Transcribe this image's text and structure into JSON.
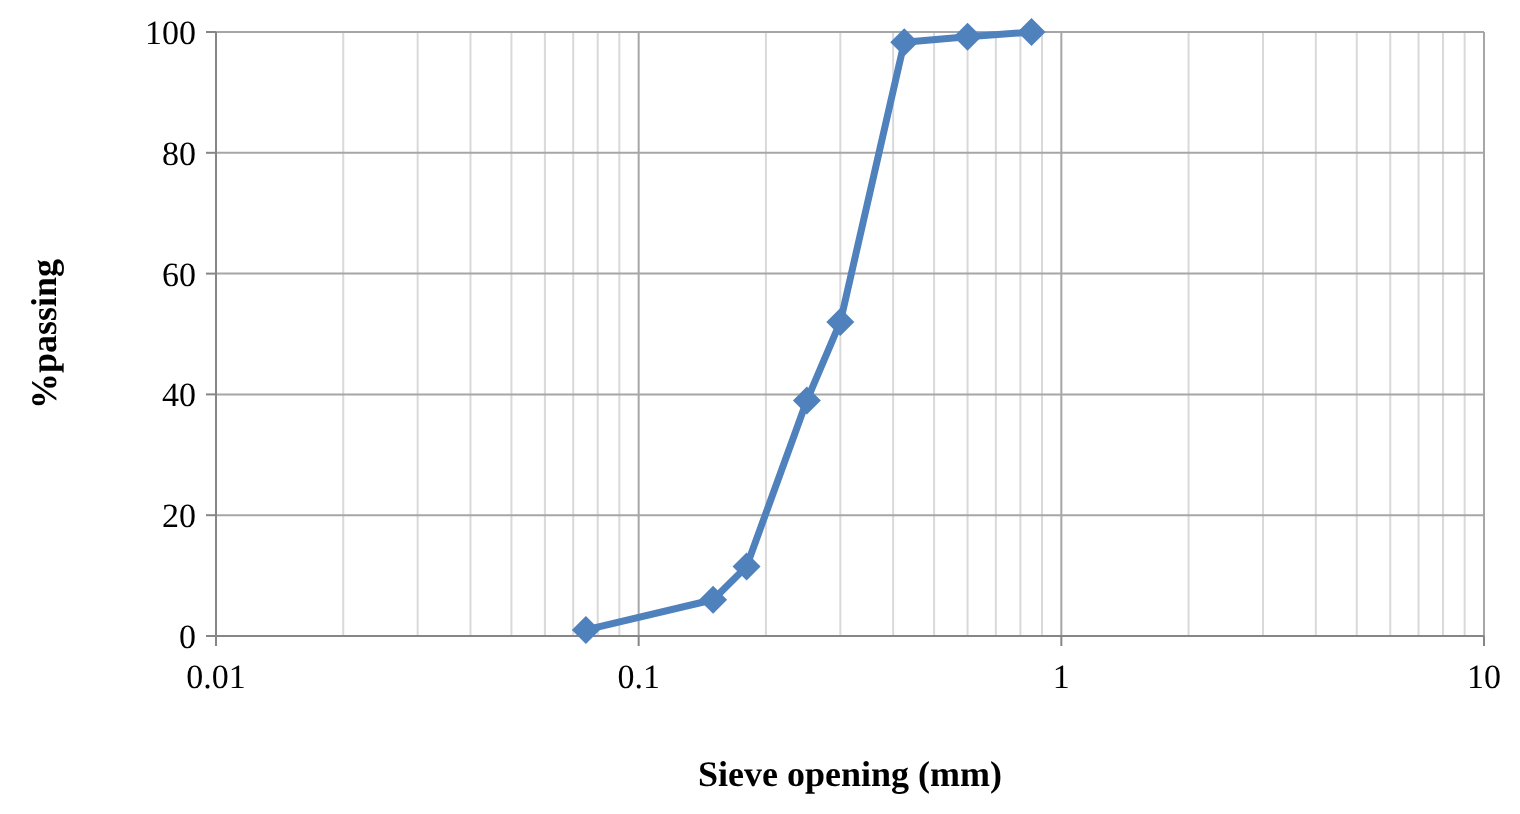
{
  "chart_data": {
    "type": "line",
    "xlabel": "Sieve opening (mm)",
    "ylabel": "%passing",
    "x": [
      0.075,
      0.15,
      0.18,
      0.25,
      0.3,
      0.425,
      0.6,
      0.85
    ],
    "series": [
      {
        "color": "#4f81bd",
        "values": [
          1,
          6,
          11.5,
          39,
          52,
          98.3,
          99.2,
          100
        ]
      }
    ],
    "xlim": [
      0.01,
      10
    ],
    "xticks": [
      0.01,
      0.1,
      1,
      10
    ],
    "ylim": [
      0,
      100
    ],
    "yticks": [
      0,
      20,
      40,
      60,
      80,
      100
    ],
    "log": "x",
    "grid": true,
    "marker": "diamond",
    "line_style": "solid"
  }
}
